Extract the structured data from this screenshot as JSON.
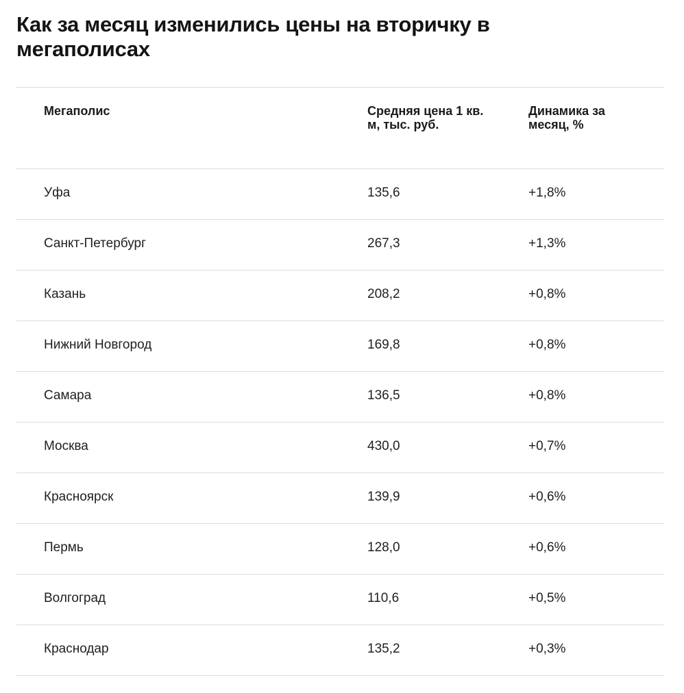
{
  "title": "Как за месяц изменились цены на вторичку в мегаполисах",
  "table": {
    "headers": [
      "Мегаполис",
      "Средняя цена 1 кв. м, тыс. руб.",
      "Динамика за месяц, %"
    ],
    "rows": [
      [
        "Уфа",
        "135,6",
        "+1,8%"
      ],
      [
        "Санкт-Петербург",
        "267,3",
        "+1,3%"
      ],
      [
        "Казань",
        "208,2",
        "+0,8%"
      ],
      [
        "Нижний Новгород",
        "169,8",
        "+0,8%"
      ],
      [
        "Самара",
        "136,5",
        "+0,8%"
      ],
      [
        "Москва",
        "430,0",
        "+0,7%"
      ],
      [
        "Красноярск",
        "139,9",
        "+0,6%"
      ],
      [
        "Пермь",
        "128,0",
        "+0,6%"
      ],
      [
        "Волгоград",
        "110,6",
        "+0,5%"
      ],
      [
        "Краснодар",
        "135,2",
        "+0,3%"
      ]
    ]
  }
}
